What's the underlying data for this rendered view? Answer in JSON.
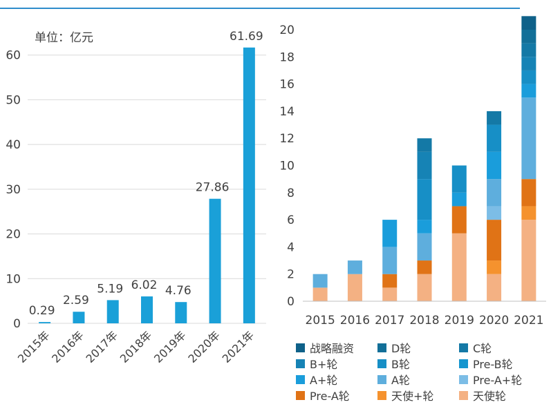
{
  "chart_data": [
    {
      "type": "bar",
      "annotation": "单位：亿元",
      "categories": [
        "2015年",
        "2016年",
        "2017年",
        "2018年",
        "2019年",
        "2020年",
        "2021年"
      ],
      "values": [
        0.29,
        2.59,
        5.19,
        6.02,
        4.76,
        27.86,
        61.69
      ],
      "value_labels": [
        "0.29",
        "2.59",
        "5.19",
        "6.02",
        "4.76",
        "27.86",
        "61.69"
      ],
      "ylim": [
        0,
        70
      ],
      "yticks": [
        0,
        10,
        20,
        30,
        40,
        50,
        60
      ],
      "grid": true,
      "color": "#1aa0d8"
    },
    {
      "type": "bar",
      "stacked": true,
      "categories": [
        "2015",
        "2016",
        "2017",
        "2018",
        "2019",
        "2020",
        "2021"
      ],
      "ylim": [
        0,
        20
      ],
      "yticks": [
        0,
        2,
        4,
        6,
        8,
        10,
        12,
        14,
        16,
        18,
        20
      ],
      "grid": false,
      "legend_position": "bottom",
      "series": [
        {
          "name": "天使轮",
          "color": "#f4b183",
          "values": [
            1,
            2,
            1,
            2,
            5,
            2,
            6
          ]
        },
        {
          "name": "天使+轮",
          "color": "#f5922e",
          "values": [
            0,
            0,
            0,
            0,
            0,
            1,
            1
          ]
        },
        {
          "name": "Pre-A轮",
          "color": "#e07316",
          "values": [
            0,
            0,
            1,
            1,
            2,
            3,
            2
          ]
        },
        {
          "name": "Pre-A+轮",
          "color": "#7cbde6",
          "values": [
            0,
            0,
            0,
            0,
            0,
            1,
            0
          ]
        },
        {
          "name": "A轮",
          "color": "#5eaedd",
          "values": [
            1,
            1,
            2,
            2,
            0,
            2,
            6
          ]
        },
        {
          "name": "A+轮",
          "color": "#1a9ddb",
          "values": [
            0,
            0,
            2,
            1,
            1,
            2,
            1
          ]
        },
        {
          "name": "Pre-B轮",
          "color": "#1596cf",
          "values": [
            0,
            0,
            0,
            0,
            0,
            0,
            0
          ]
        },
        {
          "name": "B轮",
          "color": "#178fc6",
          "values": [
            0,
            0,
            0,
            3,
            2,
            2,
            1
          ]
        },
        {
          "name": "B+轮",
          "color": "#1683b5",
          "values": [
            0,
            0,
            0,
            2,
            0,
            0,
            1
          ]
        },
        {
          "name": "C轮",
          "color": "#1479a6",
          "values": [
            0,
            0,
            0,
            1,
            0,
            1,
            1
          ]
        },
        {
          "name": "D轮",
          "color": "#126f98",
          "values": [
            0,
            0,
            0,
            0,
            0,
            0,
            1
          ]
        },
        {
          "name": "战略融资",
          "color": "#0f6189",
          "values": [
            0,
            0,
            0,
            0,
            0,
            0,
            1
          ]
        }
      ],
      "legend_order": [
        "战略融资",
        "D轮",
        "C轮",
        "B+轮",
        "B轮",
        "Pre-B轮",
        "A+轮",
        "A轮",
        "Pre-A+轮",
        "Pre-A轮",
        "天使+轮",
        "天使轮"
      ]
    }
  ]
}
